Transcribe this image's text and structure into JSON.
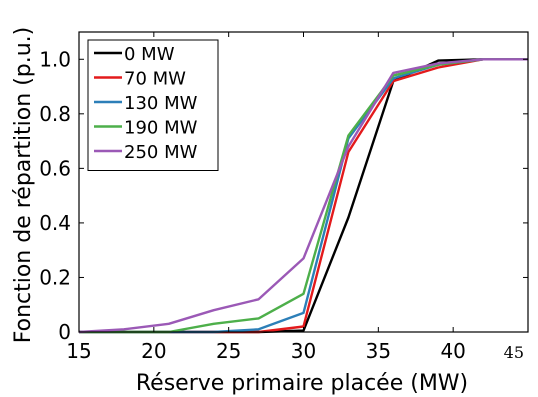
{
  "chart_data": {
    "type": "line",
    "title": "",
    "xlabel": "Réserve primaire placée (MW)",
    "ylabel": "Fonction de répartition (p.u.)",
    "xlim": [
      15,
      45
    ],
    "ylim": [
      0,
      1.1
    ],
    "xticks": [
      15,
      20,
      25,
      30,
      35,
      40,
      45
    ],
    "xtick_labels": [
      "15",
      "20",
      "25",
      "30",
      "35",
      "40",
      "45"
    ],
    "yticks": [
      0,
      0.2,
      0.4,
      0.6,
      0.8,
      1.0
    ],
    "ytick_labels": [
      "0",
      "0.2",
      "0.4",
      "0.6",
      "0.8",
      "1.0"
    ],
    "grid": false,
    "legend_position": "top-left",
    "series": [
      {
        "name": "0 MW",
        "color": "#000000",
        "x": [
          15,
          18,
          21,
          24,
          27,
          30,
          33,
          36,
          39,
          42,
          45
        ],
        "y": [
          0,
          0,
          0,
          0,
          0,
          0.005,
          0.42,
          0.92,
          0.995,
          1.0,
          1.0
        ]
      },
      {
        "name": "70 MW",
        "color": "#e31a1c",
        "x": [
          15,
          18,
          21,
          24,
          27,
          30,
          33,
          36,
          39,
          42,
          45
        ],
        "y": [
          0,
          0,
          0,
          0,
          0,
          0.02,
          0.66,
          0.92,
          0.97,
          1.0,
          1.0
        ]
      },
      {
        "name": "130 MW",
        "color": "#2c7fb8",
        "x": [
          15,
          18,
          21,
          24,
          27,
          30,
          33,
          36,
          39,
          42,
          45
        ],
        "y": [
          0,
          0,
          0,
          0,
          0.01,
          0.07,
          0.71,
          0.93,
          0.98,
          1.0,
          1.0
        ]
      },
      {
        "name": "190 MW",
        "color": "#4daf4a",
        "x": [
          15,
          18,
          21,
          24,
          27,
          30,
          33,
          36,
          39,
          42,
          45
        ],
        "y": [
          0,
          0,
          0,
          0.03,
          0.05,
          0.14,
          0.72,
          0.94,
          0.98,
          1.0,
          1.0
        ]
      },
      {
        "name": "250 MW",
        "color": "#9b59b6",
        "x": [
          15,
          18,
          21,
          24,
          27,
          30,
          33,
          36,
          39,
          42,
          45
        ],
        "y": [
          0,
          0.01,
          0.03,
          0.08,
          0.12,
          0.27,
          0.68,
          0.95,
          0.985,
          1.0,
          1.0
        ]
      }
    ]
  }
}
